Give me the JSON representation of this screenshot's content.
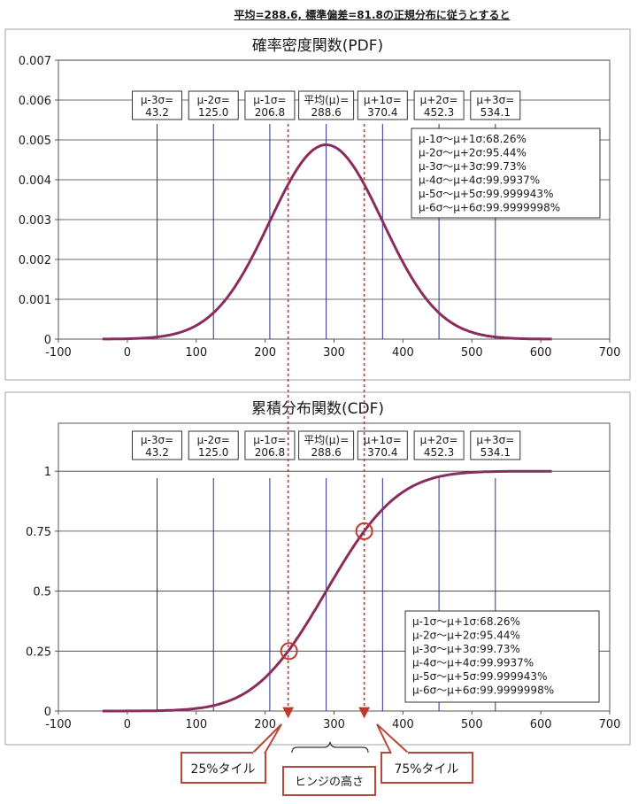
{
  "header_text": "平均=288.6, 標準偏差=81.8の正規分布に従うとすると",
  "chart_data": [
    {
      "type": "line",
      "title": "確率密度関数(PDF)",
      "xlabel": "",
      "ylabel": "",
      "xlim": [
        -100,
        700
      ],
      "ylim": [
        0,
        0.007
      ],
      "x_ticks": [
        "-100",
        "0",
        "100",
        "200",
        "300",
        "400",
        "500",
        "600",
        "700"
      ],
      "y_ticks": [
        "0",
        "0.001",
        "0.002",
        "0.003",
        "0.004",
        "0.005",
        "0.006",
        "0.007"
      ],
      "x_tick_values": [
        -100,
        0,
        100,
        200,
        300,
        400,
        500,
        600,
        700
      ],
      "y_tick_values": [
        0,
        0.001,
        0.002,
        0.003,
        0.004,
        0.005,
        0.006,
        0.007
      ],
      "grid": "horizontal",
      "series": [
        {
          "mean": 288.6,
          "sd": 81.8,
          "x_range": [
            -36,
            616
          ],
          "color": "#8b2c5e"
        }
      ],
      "sigma_lines": [
        {
          "label": "μ-3σ=",
          "value_text": "43.2",
          "x": 43.2
        },
        {
          "label": "μ-2σ=",
          "value_text": "125.0",
          "x": 125.0
        },
        {
          "label": "μ-1σ=",
          "value_text": "206.8",
          "x": 206.8
        },
        {
          "label": "平均(μ)=",
          "value_text": "288.6",
          "x": 288.6
        },
        {
          "label": "μ+1σ=",
          "value_text": "370.4",
          "x": 370.4
        },
        {
          "label": "μ+2σ=",
          "value_text": "452.3",
          "x": 452.3
        },
        {
          "label": "μ+3σ=",
          "value_text": "534.1",
          "x": 534.1
        }
      ],
      "coverage_box": [
        "μ-1σ～μ+1σ:68.26%",
        "μ-2σ～μ+2σ:95.44%",
        "μ-3σ～μ+3σ:99.73%",
        "μ-4σ～μ+4σ:99.9937%",
        "μ-5σ～μ+5σ:99.999943%",
        "μ-6σ～μ+6σ:99.9999998%"
      ]
    },
    {
      "type": "line",
      "title": "累積分布関数(CDF)",
      "xlabel": "",
      "ylabel": "",
      "xlim": [
        -100,
        700
      ],
      "ylim": [
        0,
        1.2
      ],
      "x_ticks": [
        "-100",
        "0",
        "100",
        "200",
        "300",
        "400",
        "500",
        "600",
        "700"
      ],
      "y_ticks": [
        "0",
        "0.25",
        "0.5",
        "0.75",
        "1"
      ],
      "x_tick_values": [
        -100,
        0,
        100,
        200,
        300,
        400,
        500,
        600,
        700
      ],
      "y_tick_values": [
        0,
        0.25,
        0.5,
        0.75,
        1
      ],
      "grid": "horizontal",
      "series": [
        {
          "mean": 288.6,
          "sd": 81.8,
          "x_range": [
            -36,
            616
          ],
          "color": "#8b2c5e"
        }
      ],
      "sigma_lines": [
        {
          "label": "μ-3σ=",
          "value_text": "43.2",
          "x": 43.2
        },
        {
          "label": "μ-2σ=",
          "value_text": "125.0",
          "x": 125.0
        },
        {
          "label": "μ-1σ=",
          "value_text": "206.8",
          "x": 206.8
        },
        {
          "label": "平均(μ)=",
          "value_text": "288.6",
          "x": 288.6
        },
        {
          "label": "μ+1σ=",
          "value_text": "370.4",
          "x": 370.4
        },
        {
          "label": "μ+2σ=",
          "value_text": "452.3",
          "x": 452.3
        },
        {
          "label": "μ+3σ=",
          "value_text": "534.1",
          "x": 534.1
        }
      ],
      "coverage_box": [
        "μ-1σ～μ+1σ:68.26%",
        "μ-2σ～μ+2σ:95.44%",
        "μ-3σ～μ+3σ:99.73%",
        "μ-4σ～μ+4σ:99.9937%",
        "μ-5σ～μ+5σ:99.999943%",
        "μ-6σ～μ+6σ:99.9999998%"
      ],
      "quartiles": [
        {
          "p": 0.25,
          "x": 233.4
        },
        {
          "p": 0.75,
          "x": 343.8
        }
      ]
    }
  ],
  "callouts": {
    "q1": "25%タイル",
    "q3": "75%タイル",
    "hinge": "ヒンジの高さ"
  },
  "colors": {
    "curve": "#8b2c5e",
    "sigma_line": "#2b2f8c",
    "annotation_red": "#c0392b",
    "callout_border": "#b5483a"
  }
}
